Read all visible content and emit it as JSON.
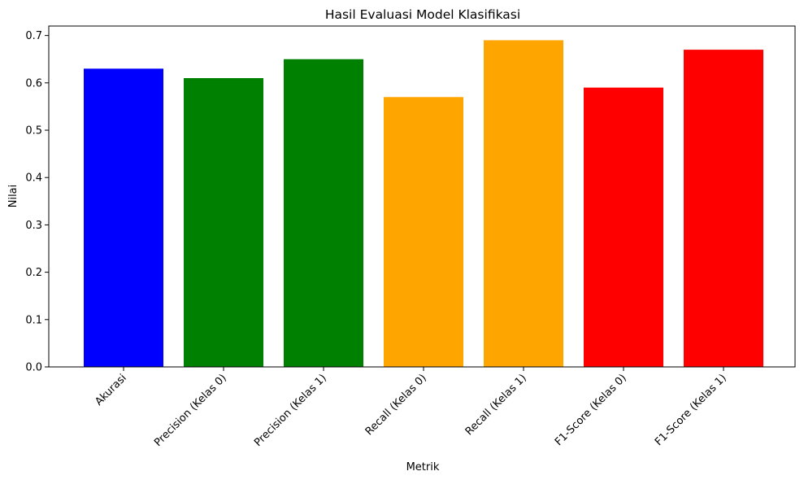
{
  "chart_data": {
    "type": "bar",
    "title": "Hasil Evaluasi Model Klasifikasi",
    "xlabel": "Metrik",
    "ylabel": "Nilai",
    "categories": [
      "Akurasi",
      "Precision (Kelas 0)",
      "Precision (Kelas 1)",
      "Recall (Kelas 0)",
      "Recall (Kelas 1)",
      "F1-Score (Kelas 0)",
      "F1-Score (Kelas 1)"
    ],
    "values": [
      0.63,
      0.61,
      0.65,
      0.57,
      0.69,
      0.59,
      0.67
    ],
    "colors": [
      "#0000ff",
      "#008000",
      "#008000",
      "#ffa500",
      "#ffa500",
      "#ff0000",
      "#ff0000"
    ],
    "ylim": [
      0,
      0.72
    ],
    "yticks": [
      "0.0",
      "0.1",
      "0.2",
      "0.3",
      "0.4",
      "0.5",
      "0.6",
      "0.7"
    ],
    "grid": false,
    "xtick_rotation": "45"
  }
}
